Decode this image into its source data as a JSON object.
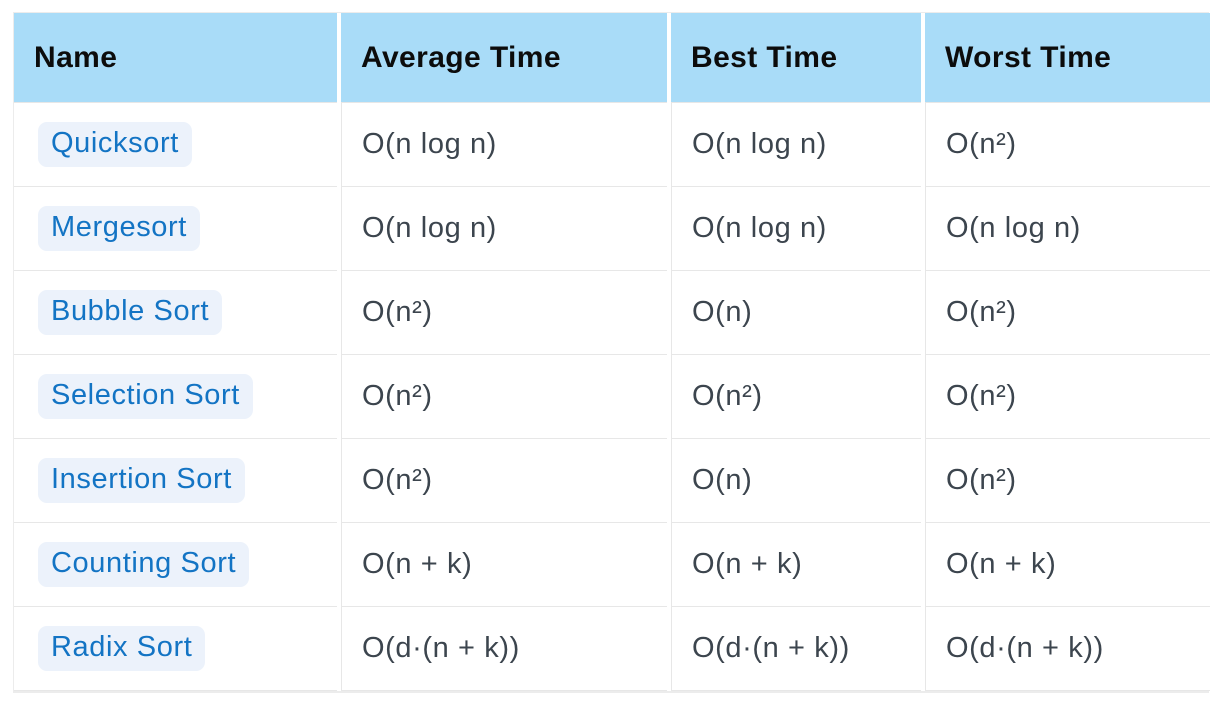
{
  "table": {
    "columns": [
      {
        "label": "Name"
      },
      {
        "label": "Average Time"
      },
      {
        "label": "Best Time"
      },
      {
        "label": "Worst Time"
      }
    ],
    "rows": [
      {
        "name": "Quicksort",
        "average": "O(n log n)",
        "best": "O(n log n)",
        "worst": "O(n²)"
      },
      {
        "name": "Mergesort",
        "average": "O(n log n)",
        "best": "O(n log n)",
        "worst": "O(n log n)"
      },
      {
        "name": "Bubble Sort",
        "average": "O(n²)",
        "best": "O(n)",
        "worst": "O(n²)"
      },
      {
        "name": "Selection Sort",
        "average": "O(n²)",
        "best": "O(n²)",
        "worst": "O(n²)"
      },
      {
        "name": "Insertion Sort",
        "average": "O(n²)",
        "best": "O(n)",
        "worst": "O(n²)"
      },
      {
        "name": "Counting Sort",
        "average": "O(n + k)",
        "best": "O(n + k)",
        "worst": "O(n + k)"
      },
      {
        "name": "Radix Sort",
        "average": "O(d·(n + k))",
        "best": "O(d·(n + k))",
        "worst": "O(d·(n + k))"
      }
    ],
    "colors": {
      "header_bg": "#a9dcf8",
      "header_text": "#0c0c0c",
      "link_text": "#1374c4",
      "link_pill_bg": "#ecf2fb",
      "cell_text": "#3c454e",
      "row_border": "#e7e7e7",
      "outer_border": "#ececec",
      "page_bg": "#ffffff"
    }
  }
}
